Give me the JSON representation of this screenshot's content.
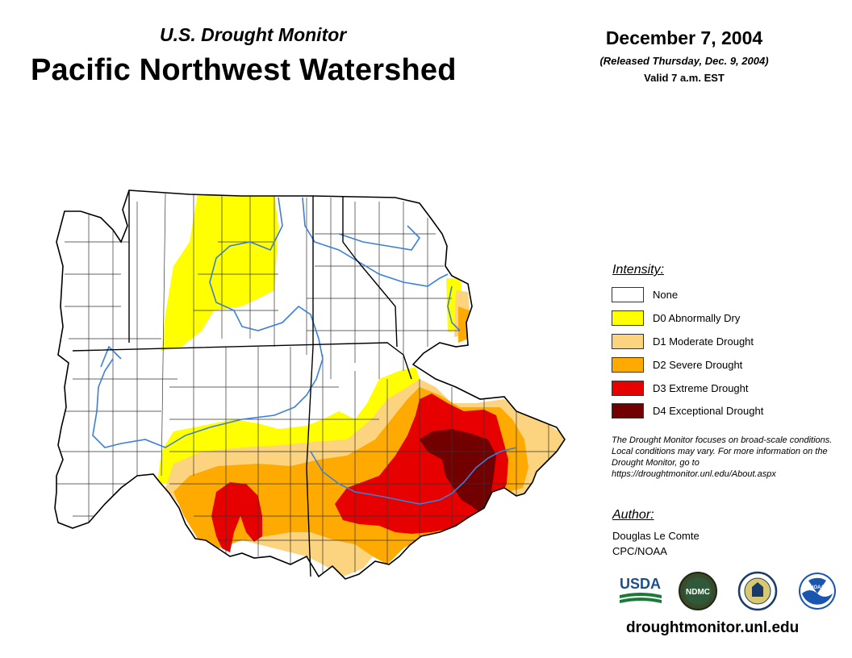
{
  "header": {
    "subtitle": "U.S. Drought Monitor",
    "title": "Pacific Northwest Watershed",
    "date": "December 7, 2004",
    "released": "(Released Thursday, Dec. 9, 2004)",
    "valid": "Valid 7 a.m. EST"
  },
  "legend": {
    "title": "Intensity:",
    "items": [
      {
        "label": "None",
        "color": "#ffffff"
      },
      {
        "label": "D0 Abnormally Dry",
        "color": "#ffff00"
      },
      {
        "label": "D1 Moderate Drought",
        "color": "#fcd37f"
      },
      {
        "label": "D2 Severe Drought",
        "color": "#ffaa00"
      },
      {
        "label": "D3 Extreme Drought",
        "color": "#e60000"
      },
      {
        "label": "D4 Exceptional Drought",
        "color": "#730000"
      }
    ]
  },
  "note": "The Drought Monitor focuses on broad-scale conditions. Local conditions may vary. For more information on the Drought Monitor, go to https://droughtmonitor.unl.edu/About.aspx",
  "author": {
    "title": "Author:",
    "name": "Douglas Le Comte",
    "org": "CPC/NOAA"
  },
  "logos": {
    "usda": "USDA",
    "ndmc": "NDMC",
    "noaa": "NOAA"
  },
  "url": "droughtmonitor.unl.edu",
  "colors": {
    "river": "#3a7fd8",
    "county_line": "#222222",
    "state_line": "#000000"
  }
}
